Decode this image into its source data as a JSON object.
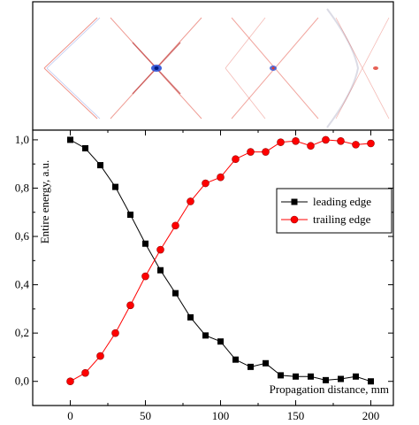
{
  "chart_data": {
    "type": "line",
    "xlabel": "Propagation distance, mm",
    "ylabel": "Entire energy, a.u.",
    "xlim": [
      -25,
      215
    ],
    "ylim": [
      -0.1,
      1.04
    ],
    "x_ticks": [
      "0",
      "50",
      "100",
      "150",
      "200"
    ],
    "y_ticks": [
      "0,0",
      "0,2",
      "0,4",
      "0,6",
      "0,8",
      "1,0"
    ],
    "legend_position": "right",
    "series": [
      {
        "name": "leading edge",
        "color": "#000000",
        "marker": "square",
        "x": [
          0,
          10,
          20,
          30,
          40,
          50,
          60,
          70,
          80,
          90,
          100,
          110,
          120,
          130,
          140,
          150,
          160,
          170,
          180,
          190,
          200
        ],
        "y": [
          1.0,
          0.965,
          0.895,
          0.805,
          0.69,
          0.57,
          0.46,
          0.365,
          0.265,
          0.19,
          0.165,
          0.09,
          0.06,
          0.075,
          0.025,
          0.02,
          0.02,
          0.005,
          0.01,
          0.02,
          0.0
        ]
      },
      {
        "name": "trailing edge",
        "color": "#ff0000",
        "marker": "circle",
        "x": [
          0,
          10,
          20,
          30,
          40,
          50,
          60,
          70,
          80,
          90,
          100,
          110,
          120,
          130,
          140,
          150,
          160,
          170,
          180,
          190,
          200
        ],
        "y": [
          0.0,
          0.035,
          0.105,
          0.2,
          0.315,
          0.435,
          0.545,
          0.645,
          0.745,
          0.82,
          0.845,
          0.92,
          0.95,
          0.95,
          0.99,
          0.995,
          0.975,
          1.0,
          0.995,
          0.98,
          0.985
        ]
      }
    ],
    "inset_image": {
      "description_colors": [
        "#2a4fd6",
        "#e03a2a"
      ]
    }
  }
}
